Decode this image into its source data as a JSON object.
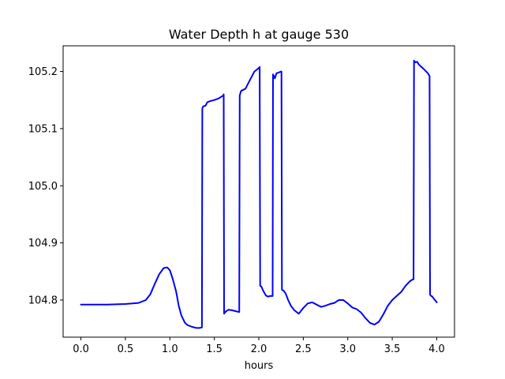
{
  "chart_data": {
    "type": "line",
    "title": "Water Depth h at gauge 530",
    "xlabel": "hours",
    "ylabel": "",
    "xlim": [
      -0.2,
      4.2
    ],
    "ylim": [
      104.735,
      105.245
    ],
    "xticks": [
      0.0,
      0.5,
      1.0,
      1.5,
      2.0,
      2.5,
      3.0,
      3.5,
      4.0
    ],
    "xtick_labels": [
      "0.0",
      "0.5",
      "1.0",
      "1.5",
      "2.0",
      "2.5",
      "3.0",
      "3.5",
      "4.0"
    ],
    "yticks": [
      104.8,
      104.9,
      105.0,
      105.1,
      105.2
    ],
    "ytick_labels": [
      "104.8",
      "104.9",
      "105.0",
      "105.1",
      "105.2"
    ],
    "grid": false,
    "series": [
      {
        "color": "#0000ff",
        "x": [
          0.0,
          0.3,
          0.5,
          0.65,
          0.73,
          0.78,
          0.83,
          0.88,
          0.93,
          0.97,
          1.0,
          1.03,
          1.07,
          1.1,
          1.13,
          1.17,
          1.2,
          1.25,
          1.3,
          1.33,
          1.36,
          1.365,
          1.37,
          1.39,
          1.4,
          1.42,
          1.45,
          1.5,
          1.55,
          1.6,
          1.605,
          1.61,
          1.63,
          1.66,
          1.7,
          1.75,
          1.78,
          1.785,
          1.8,
          1.85,
          1.9,
          1.95,
          2.0,
          2.01,
          2.015,
          2.03,
          2.05,
          2.08,
          2.1,
          2.13,
          2.155,
          2.16,
          2.18,
          2.2,
          2.22,
          2.25,
          2.255,
          2.26,
          2.28,
          2.3,
          2.33,
          2.36,
          2.4,
          2.45,
          2.5,
          2.55,
          2.6,
          2.65,
          2.7,
          2.75,
          2.8,
          2.85,
          2.9,
          2.95,
          3.0,
          3.05,
          3.1,
          3.15,
          3.2,
          3.25,
          3.3,
          3.35,
          3.4,
          3.45,
          3.5,
          3.55,
          3.6,
          3.65,
          3.7,
          3.73,
          3.74,
          3.745,
          3.76,
          3.78,
          3.8,
          3.85,
          3.9,
          3.92,
          3.925,
          3.93,
          3.95,
          3.98,
          4.0
        ],
        "y": [
          104.792,
          104.792,
          104.793,
          104.795,
          104.8,
          104.81,
          104.828,
          104.845,
          104.856,
          104.857,
          104.852,
          104.838,
          104.815,
          104.79,
          104.773,
          104.76,
          104.756,
          104.753,
          104.751,
          104.751,
          104.752,
          105.135,
          105.138,
          105.14,
          105.14,
          105.146,
          105.148,
          105.15,
          105.153,
          105.158,
          105.16,
          104.776,
          104.78,
          104.783,
          104.782,
          104.78,
          104.779,
          105.158,
          105.166,
          105.17,
          105.185,
          105.2,
          105.206,
          105.208,
          104.825,
          104.823,
          104.816,
          104.808,
          104.806,
          104.807,
          104.807,
          105.195,
          105.188,
          105.197,
          105.198,
          105.2,
          105.2,
          104.818,
          104.816,
          104.812,
          104.8,
          104.79,
          104.782,
          104.776,
          104.786,
          104.794,
          104.796,
          104.792,
          104.788,
          104.79,
          104.793,
          104.795,
          104.8,
          104.8,
          104.794,
          104.787,
          104.784,
          104.778,
          104.768,
          104.76,
          104.757,
          104.762,
          104.775,
          104.79,
          104.8,
          104.807,
          104.814,
          104.825,
          104.833,
          104.836,
          104.836,
          105.219,
          105.216,
          105.217,
          105.212,
          105.205,
          105.197,
          105.192,
          104.81,
          104.808,
          104.806,
          104.8,
          104.796
        ]
      }
    ]
  }
}
